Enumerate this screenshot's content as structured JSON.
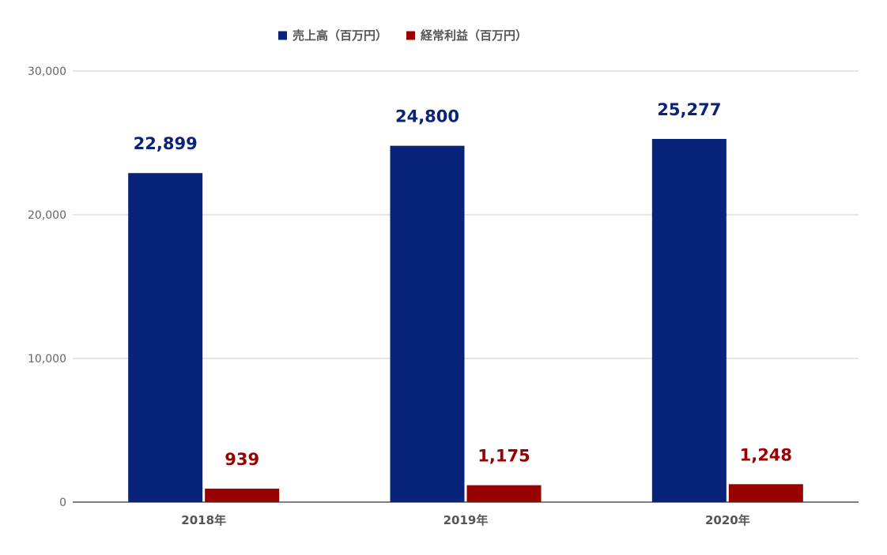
{
  "chart_data": {
    "type": "bar",
    "title": "",
    "xlabel": "",
    "ylabel": "",
    "categories": [
      "2018年",
      "2019年",
      "2020年"
    ],
    "ylim": [
      0,
      30000
    ],
    "yticks": [
      0,
      10000,
      20000,
      30000
    ],
    "ytick_labels": [
      "0",
      "10,000",
      "20,000",
      "30,000"
    ],
    "grid": true,
    "legend_position": "top-center",
    "series": [
      {
        "name": "売上高（百万円）",
        "color": "#0a237a",
        "values": [
          22899,
          24800,
          25277
        ],
        "value_labels": [
          "22,899",
          "24,800",
          "25,277"
        ]
      },
      {
        "name": "経常利益（百万円）",
        "color": "#990000",
        "values": [
          939,
          1175,
          1248
        ],
        "value_labels": [
          "939",
          "1,175",
          "1,248"
        ]
      }
    ]
  }
}
